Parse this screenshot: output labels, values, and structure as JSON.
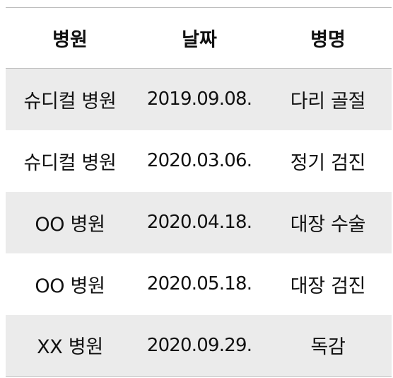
{
  "table": {
    "headers": [
      "병원",
      "날짜",
      "병명"
    ],
    "rows": [
      {
        "hospital": "슈디컬 병원",
        "date": "2019.09.08.",
        "disease": "다리 골절"
      },
      {
        "hospital": "슈디컬 병원",
        "date": "2020.03.06.",
        "disease": "정기 검진"
      },
      {
        "hospital": "OO 병원",
        "date": "2020.04.18.",
        "disease": "대장 수술"
      },
      {
        "hospital": "OO 병원",
        "date": "2020.05.18.",
        "disease": "대장 검진"
      },
      {
        "hospital": "XX 병원",
        "date": "2020.09.29.",
        "disease": "독감"
      }
    ]
  },
  "colors": {
    "row_shade": "#ebebeb",
    "border": "#bdbdbd"
  }
}
